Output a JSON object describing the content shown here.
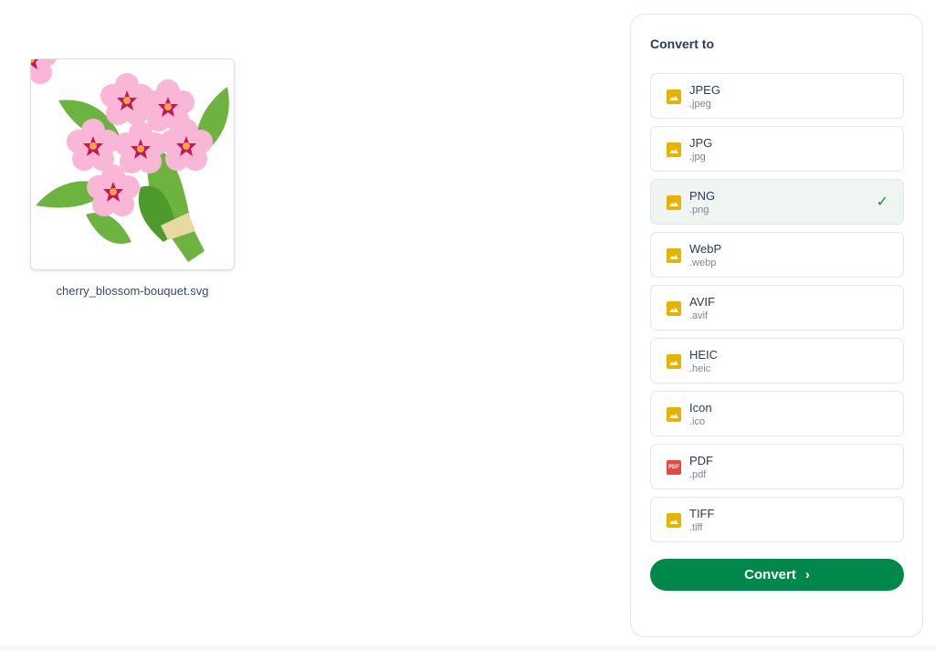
{
  "file": {
    "name": "cherry_blossom-bouquet.svg"
  },
  "panel": {
    "title": "Convert to",
    "formats": [
      {
        "name": "JPEG",
        "ext": ".jpeg",
        "icon": "image-icon",
        "selected": false
      },
      {
        "name": "JPG",
        "ext": ".jpg",
        "icon": "image-icon",
        "selected": false
      },
      {
        "name": "PNG",
        "ext": ".png",
        "icon": "image-icon",
        "selected": true
      },
      {
        "name": "WebP",
        "ext": ".webp",
        "icon": "image-icon",
        "selected": false
      },
      {
        "name": "AVIF",
        "ext": ".avif",
        "icon": "image-icon",
        "selected": false
      },
      {
        "name": "HEIC",
        "ext": ".heic",
        "icon": "image-icon",
        "selected": false
      },
      {
        "name": "Icon",
        "ext": ".ico",
        "icon": "image-icon",
        "selected": false
      },
      {
        "name": "PDF",
        "ext": ".pdf",
        "icon": "pdf-icon",
        "icon_text": "PDF",
        "selected": false
      },
      {
        "name": "TIFF",
        "ext": ".tiff",
        "icon": "image-icon",
        "selected": false
      }
    ],
    "convert_label": "Convert",
    "colors": {
      "accent": "#00874a",
      "image_icon": "#e5b300",
      "pdf_icon": "#e5483d",
      "selected_bg": "#eff5f0"
    }
  }
}
